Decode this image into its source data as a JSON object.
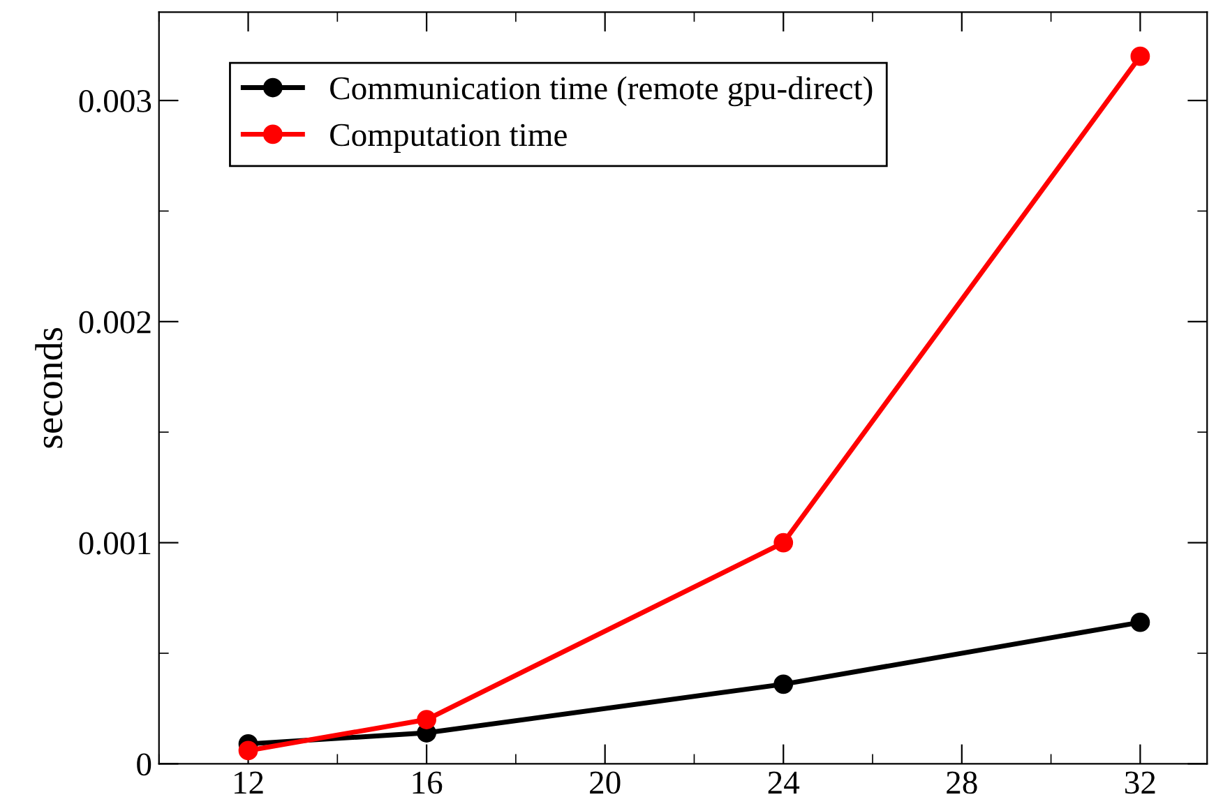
{
  "chart_data": {
    "type": "line",
    "ylabel": "seconds",
    "x": [
      12,
      16,
      24,
      32
    ],
    "series": [
      {
        "name": "Communication time (remote gpu-direct)",
        "color": "#000000",
        "values": [
          9e-05,
          0.00014,
          0.00036,
          0.00064
        ]
      },
      {
        "name": "Computation time",
        "color": "#ff0000",
        "values": [
          6e-05,
          0.0002,
          0.001,
          0.0032
        ]
      }
    ],
    "xlim": [
      10,
      33.5
    ],
    "ylim": [
      0,
      0.0034
    ],
    "xticks": [
      12,
      16,
      20,
      24,
      28,
      32
    ],
    "yticks": [
      {
        "value": 0,
        "label": "0"
      },
      0.001,
      0.002,
      0.003
    ],
    "grid": false,
    "legend": "top left",
    "marker": "circle",
    "line_style": "solid"
  }
}
